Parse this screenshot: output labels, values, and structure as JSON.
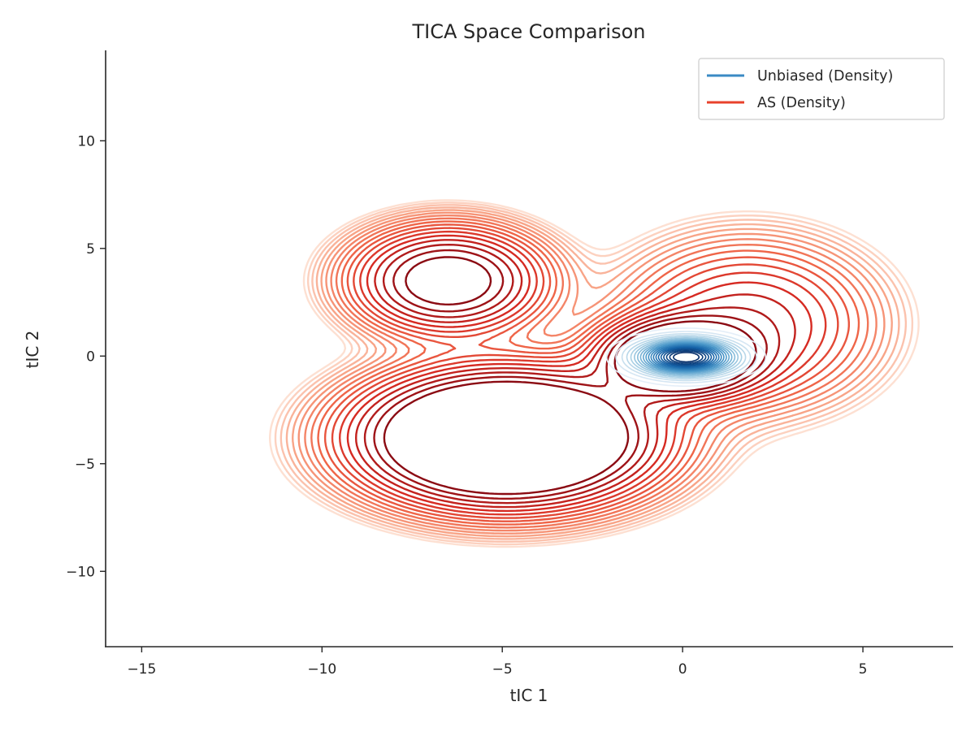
{
  "chart_data": {
    "type": "contour",
    "title": "TICA Space Comparison",
    "xlabel": "tIC 1",
    "ylabel": "tIC 2",
    "xlim": [
      -16,
      7.5
    ],
    "ylim": [
      -13.5,
      14.2
    ],
    "xticks": [
      -15,
      -10,
      -5,
      0,
      5
    ],
    "yticks": [
      -10,
      -5,
      0,
      5,
      10
    ],
    "xtick_labels": [
      "−15",
      "−10",
      "−5",
      "0",
      "5"
    ],
    "ytick_labels": [
      "−10",
      "−5",
      "0",
      "5",
      "10"
    ],
    "grid": false,
    "legend_position": "top-right",
    "series": [
      {
        "name": "Unbiased (Density)",
        "color": "#3a8ac4",
        "colormap": "Blues",
        "modes": [
          {
            "x": 0.1,
            "y": -0.05,
            "sx": 0.9,
            "sy": 0.55,
            "w": 1.0
          }
        ]
      },
      {
        "name": "AS (Density)",
        "color": "#e8412b",
        "colormap": "Reds",
        "modes": [
          {
            "x": -4.9,
            "y": -3.8,
            "sx": 2.2,
            "sy": 1.7,
            "w": 1.0
          },
          {
            "x": -6.5,
            "y": 3.5,
            "sx": 1.5,
            "sy": 1.4,
            "w": 0.42
          },
          {
            "x": -0.1,
            "y": -0.1,
            "sx": 1.2,
            "sy": 1.0,
            "w": 0.72
          },
          {
            "x": 1.8,
            "y": 1.5,
            "sx": 2.0,
            "sy": 2.2,
            "w": 0.2
          }
        ]
      }
    ]
  }
}
